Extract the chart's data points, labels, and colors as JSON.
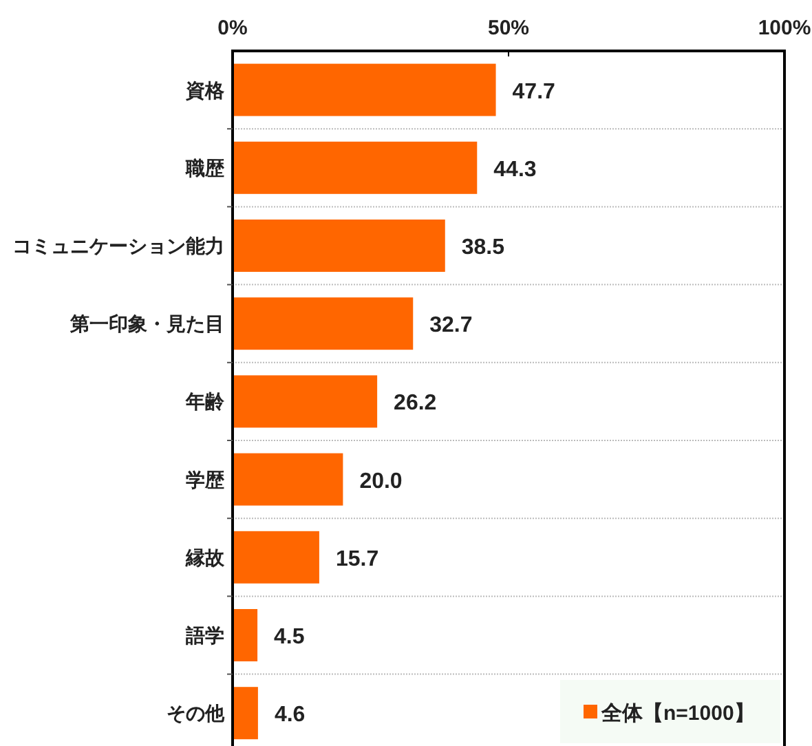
{
  "chart_data": {
    "type": "bar",
    "orientation": "horizontal",
    "categories": [
      "資格",
      "職歴",
      "コミュニケーション能力",
      "第一印象・見た目",
      "年齢",
      "学歴",
      "縁故",
      "語学",
      "その他"
    ],
    "series": [
      {
        "name": "全体【n=1000】",
        "color": "#ff6600",
        "values": [
          47.7,
          44.3,
          38.5,
          32.7,
          26.2,
          20.0,
          15.7,
          4.5,
          4.6
        ],
        "value_labels": [
          "47.7",
          "44.3",
          "38.5",
          "32.7",
          "26.2",
          "20.0",
          "15.7",
          "4.5",
          "4.6"
        ]
      }
    ],
    "xlim": [
      0,
      100
    ],
    "xticks": [
      {
        "value": 0,
        "label": "0%"
      },
      {
        "value": 50,
        "label": "50%"
      },
      {
        "value": 100,
        "label": "100%"
      }
    ],
    "grid": "y",
    "legend": "bottom right"
  }
}
